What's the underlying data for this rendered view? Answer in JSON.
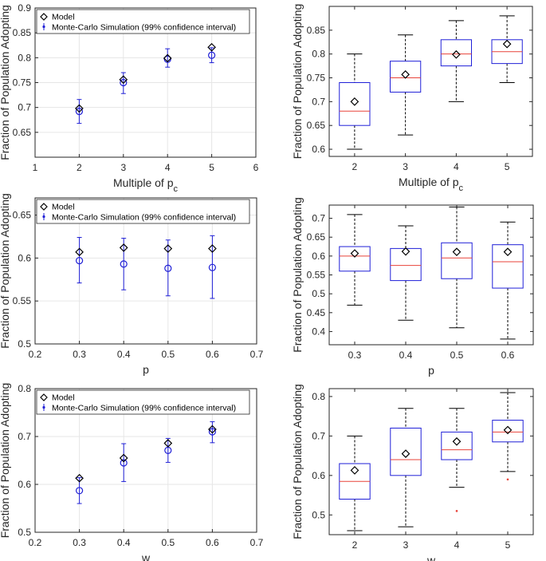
{
  "colors": {
    "model": "#000000",
    "mc": "#1f1fd6",
    "box": "#2020d8",
    "median": "#e8433a",
    "whisker": "#000000",
    "outlier": "#e8433a",
    "grid": "#e6e6e6",
    "axis": "#262626"
  },
  "legend_labels": {
    "model": "Model",
    "mc": "Monte-Carlo Simulation (99% confidence interval)"
  },
  "chart_data": [
    {
      "id": "p1",
      "type": "scatter",
      "title": "",
      "xlabel": "Multiple of p",
      "xlabel_sub": "c",
      "ylabel": "Fraction of Population Adopting",
      "xlim": [
        1,
        6
      ],
      "ylim": [
        0.6,
        0.9
      ],
      "xticks": [
        1,
        2,
        3,
        4,
        5,
        6
      ],
      "xtick_labels": [
        "1",
        "2",
        "3",
        "4",
        "5",
        "6"
      ],
      "yticks": [
        0.65,
        0.7,
        0.75,
        0.8,
        0.85,
        0.9
      ],
      "ytick_labels": [
        "0.65",
        "0.7",
        "0.75",
        "0.8",
        "0.85",
        "0.9"
      ],
      "grid": true,
      "legend": "top-left",
      "x": [
        2,
        3,
        4,
        5
      ],
      "model": [
        0.698,
        0.756,
        0.799,
        0.821
      ],
      "mc_mean": [
        0.692,
        0.75,
        0.797,
        0.805
      ],
      "mc_low": [
        0.668,
        0.728,
        0.781,
        0.79
      ],
      "mc_high": [
        0.716,
        0.77,
        0.818,
        0.82
      ]
    },
    {
      "id": "p2",
      "type": "box",
      "title": "",
      "xlabel": "Multiple of p",
      "xlabel_sub": "c",
      "ylabel": "Fraction of Population Adopting",
      "xlim": [
        1.5,
        5.5
      ],
      "ylim": [
        0.585,
        0.9
      ],
      "xticks": [
        2,
        3,
        4,
        5
      ],
      "xtick_labels": [
        "2",
        "3",
        "4",
        "5"
      ],
      "yticks": [
        0.6,
        0.65,
        0.7,
        0.75,
        0.8,
        0.85
      ],
      "ytick_labels": [
        "0.6",
        "0.65",
        "0.7",
        "0.75",
        "0.8",
        "0.85"
      ],
      "grid": false,
      "boxes": [
        {
          "x": 2,
          "q1": 0.65,
          "median": 0.68,
          "q3": 0.74,
          "whisker_low": 0.6,
          "whisker_high": 0.8,
          "model": 0.7,
          "outliers": []
        },
        {
          "x": 3,
          "q1": 0.72,
          "median": 0.75,
          "q3": 0.785,
          "whisker_low": 0.63,
          "whisker_high": 0.84,
          "model": 0.757,
          "outliers": []
        },
        {
          "x": 4,
          "q1": 0.775,
          "median": 0.8,
          "q3": 0.83,
          "whisker_low": 0.7,
          "whisker_high": 0.87,
          "model": 0.799,
          "outliers": []
        },
        {
          "x": 5,
          "q1": 0.78,
          "median": 0.805,
          "q3": 0.83,
          "whisker_low": 0.74,
          "whisker_high": 0.88,
          "model": 0.821,
          "outliers": []
        }
      ]
    },
    {
      "id": "p3",
      "type": "scatter",
      "title": "",
      "xlabel": "p",
      "xlabel_sub": "",
      "ylabel": "Fraction of Population Adopting",
      "xlim": [
        0.2,
        0.7
      ],
      "ylim": [
        0.5,
        0.67
      ],
      "xticks": [
        0.2,
        0.3,
        0.4,
        0.5,
        0.6,
        0.7
      ],
      "xtick_labels": [
        "0.2",
        "0.3",
        "0.4",
        "0.5",
        "0.6",
        "0.7"
      ],
      "yticks": [
        0.5,
        0.55,
        0.6,
        0.65
      ],
      "ytick_labels": [
        "0.5",
        "0.55",
        "0.6",
        "0.65"
      ],
      "grid": true,
      "legend": "top-left",
      "x": [
        0.3,
        0.4,
        0.5,
        0.6
      ],
      "model": [
        0.607,
        0.612,
        0.611,
        0.611
      ],
      "mc_mean": [
        0.597,
        0.593,
        0.588,
        0.589
      ],
      "mc_low": [
        0.571,
        0.563,
        0.556,
        0.553
      ],
      "mc_high": [
        0.624,
        0.623,
        0.621,
        0.626
      ]
    },
    {
      "id": "p4",
      "type": "box",
      "title": "",
      "xlabel": "p",
      "xlabel_sub": "",
      "ylabel": "Fraction of Population Adopting",
      "xlim": [
        0.25,
        0.65
      ],
      "ylim": [
        0.365,
        0.735
      ],
      "xticks": [
        0.3,
        0.4,
        0.5,
        0.6
      ],
      "xtick_labels": [
        "0.3",
        "0.4",
        "0.5",
        "0.6"
      ],
      "yticks": [
        0.4,
        0.45,
        0.5,
        0.55,
        0.6,
        0.65,
        0.7
      ],
      "ytick_labels": [
        "0.4",
        "0.45",
        "0.5",
        "0.55",
        "0.6",
        "0.65",
        "0.7"
      ],
      "grid": false,
      "boxes": [
        {
          "x": 0.3,
          "q1": 0.56,
          "median": 0.6,
          "q3": 0.625,
          "whisker_low": 0.47,
          "whisker_high": 0.71,
          "model": 0.607,
          "outliers": []
        },
        {
          "x": 0.4,
          "q1": 0.535,
          "median": 0.575,
          "q3": 0.62,
          "whisker_low": 0.43,
          "whisker_high": 0.68,
          "model": 0.612,
          "outliers": []
        },
        {
          "x": 0.5,
          "q1": 0.54,
          "median": 0.595,
          "q3": 0.635,
          "whisker_low": 0.41,
          "whisker_high": 0.73,
          "model": 0.611,
          "outliers": []
        },
        {
          "x": 0.6,
          "q1": 0.515,
          "median": 0.585,
          "q3": 0.63,
          "whisker_low": 0.38,
          "whisker_high": 0.69,
          "model": 0.611,
          "outliers": []
        }
      ]
    },
    {
      "id": "p5",
      "type": "scatter",
      "title": "",
      "xlabel": "w",
      "xlabel_sub": "",
      "ylabel": "Fraction of Population Adopting",
      "xlim": [
        0.2,
        0.7
      ],
      "ylim": [
        0.5,
        0.8
      ],
      "xticks": [
        0.2,
        0.3,
        0.4,
        0.5,
        0.6,
        0.7
      ],
      "xtick_labels": [
        "0.2",
        "0.3",
        "0.4",
        "0.5",
        "0.6",
        "0.7"
      ],
      "yticks": [
        0.5,
        0.6,
        0.7,
        0.8
      ],
      "ytick_labels": [
        "0.5",
        "0.6",
        "0.7",
        "0.8"
      ],
      "grid": true,
      "legend": "top-left",
      "x": [
        0.3,
        0.4,
        0.5,
        0.6
      ],
      "model": [
        0.613,
        0.655,
        0.686,
        0.715
      ],
      "mc_mean": [
        0.587,
        0.645,
        0.671,
        0.71
      ],
      "mc_low": [
        0.56,
        0.606,
        0.646,
        0.687
      ],
      "mc_high": [
        0.614,
        0.685,
        0.696,
        0.731
      ]
    },
    {
      "id": "p6",
      "type": "box",
      "title": "",
      "xlabel": "w",
      "xlabel_sub": "",
      "ylabel": "Fraction of Population Adopting",
      "xlim": [
        1.5,
        5.5
      ],
      "ylim": [
        0.45,
        0.82
      ],
      "xticks": [
        2,
        3,
        4,
        5
      ],
      "xtick_labels": [
        "2",
        "3",
        "4",
        "5"
      ],
      "yticks": [
        0.5,
        0.6,
        0.7,
        0.8
      ],
      "ytick_labels": [
        "0.5",
        "0.6",
        "0.7",
        "0.8"
      ],
      "grid": false,
      "boxes": [
        {
          "x": 2,
          "q1": 0.54,
          "median": 0.585,
          "q3": 0.63,
          "whisker_low": 0.46,
          "whisker_high": 0.7,
          "model": 0.613,
          "outliers": []
        },
        {
          "x": 3,
          "q1": 0.6,
          "median": 0.64,
          "q3": 0.72,
          "whisker_low": 0.47,
          "whisker_high": 0.77,
          "model": 0.655,
          "outliers": []
        },
        {
          "x": 4,
          "q1": 0.64,
          "median": 0.665,
          "q3": 0.71,
          "whisker_low": 0.57,
          "whisker_high": 0.77,
          "model": 0.686,
          "outliers": [
            0.51
          ]
        },
        {
          "x": 5,
          "q1": 0.685,
          "median": 0.71,
          "q3": 0.74,
          "whisker_low": 0.61,
          "whisker_high": 0.81,
          "model": 0.715,
          "outliers": [
            0.59
          ]
        }
      ]
    }
  ]
}
